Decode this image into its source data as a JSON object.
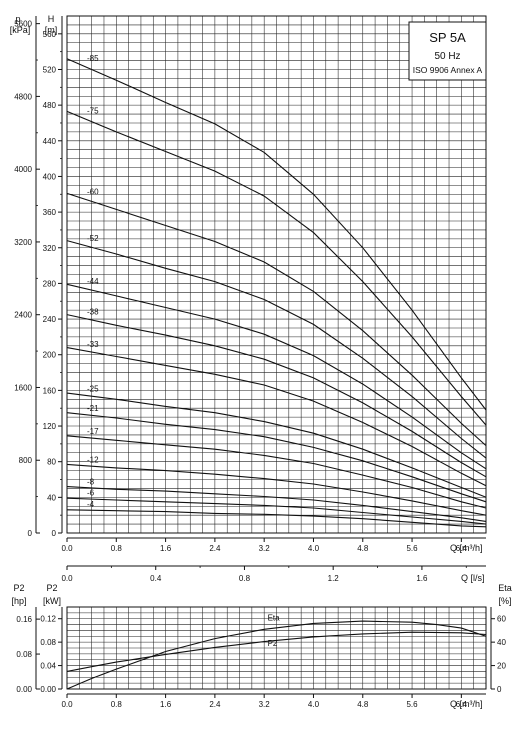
{
  "chart_data": [
    {
      "type": "line",
      "title": "SP 5A",
      "subtitle": "50 Hz",
      "note": "ISO 9906 Annex A",
      "xlabel": "Q [m³/h]",
      "ylabel": "H [m]",
      "ylabel_secondary": "p [kPa]",
      "grid": true,
      "xlim": [
        0,
        6.8
      ],
      "ylim": [
        0,
        580
      ],
      "x_ticks": [
        "0.0",
        "0.8",
        "1.6",
        "2.4",
        "3.2",
        "4.0",
        "4.8",
        "5.6",
        "6.4"
      ],
      "y_ticks": [
        "0",
        "40",
        "80",
        "120",
        "160",
        "200",
        "240",
        "280",
        "320",
        "360",
        "400",
        "440",
        "480",
        "520",
        "560"
      ],
      "p_ticks": [
        "0",
        "800",
        "1600",
        "2400",
        "3200",
        "4000",
        "4800",
        "5600"
      ],
      "q2_label": "Q [l/s]",
      "q2_ticks": [
        "0.0",
        "0.4",
        "0.8",
        "1.2",
        "1.6"
      ],
      "series": [
        {
          "name": "-85",
          "x": [
            0,
            0.8,
            1.6,
            2.4,
            3.2,
            4.0,
            4.8,
            5.6,
            6.4,
            6.8
          ],
          "values": [
            532,
            508,
            483,
            459,
            427,
            380,
            320,
            250,
            174,
            138
          ]
        },
        {
          "name": "-75",
          "x": [
            0,
            0.8,
            1.6,
            2.4,
            3.2,
            4.0,
            4.8,
            5.6,
            6.4,
            6.8
          ],
          "values": [
            473,
            450,
            428,
            406,
            378,
            337,
            282,
            220,
            153,
            121
          ]
        },
        {
          "name": "-60",
          "x": [
            0,
            0.8,
            1.6,
            2.4,
            3.2,
            4.0,
            4.8,
            5.6,
            6.4,
            6.8
          ],
          "values": [
            381,
            363,
            345,
            327,
            304,
            271,
            227,
            177,
            123,
            98
          ]
        },
        {
          "name": "-52",
          "x": [
            0,
            0.8,
            1.6,
            2.4,
            3.2,
            4.0,
            4.8,
            5.6,
            6.4,
            6.8
          ],
          "values": [
            328,
            313,
            297,
            282,
            262,
            234,
            196,
            153,
            106,
            84
          ]
        },
        {
          "name": "-44",
          "x": [
            0,
            0.8,
            1.6,
            2.4,
            3.2,
            4.0,
            4.8,
            5.6,
            6.4,
            6.8
          ],
          "values": [
            279,
            266,
            253,
            240,
            223,
            199,
            167,
            130,
            90,
            72
          ]
        },
        {
          "name": "-38",
          "x": [
            0,
            0.8,
            1.6,
            2.4,
            3.2,
            4.0,
            4.8,
            5.6,
            6.4,
            6.8
          ],
          "values": [
            245,
            233,
            222,
            210,
            195,
            174,
            146,
            114,
            79,
            63
          ]
        },
        {
          "name": "-33",
          "x": [
            0,
            0.8,
            1.6,
            2.4,
            3.2,
            4.0,
            4.8,
            5.6,
            6.4,
            6.8
          ],
          "values": [
            208,
            198,
            188,
            178,
            166,
            148,
            124,
            97,
            67,
            53
          ]
        },
        {
          "name": "-25",
          "x": [
            0,
            0.8,
            1.6,
            2.4,
            3.2,
            4.0,
            4.8,
            5.6,
            6.4,
            6.8
          ],
          "values": [
            157,
            150,
            142,
            135,
            125,
            112,
            94,
            73,
            51,
            40
          ]
        },
        {
          "name": "-21",
          "x": [
            0,
            0.8,
            1.6,
            2.4,
            3.2,
            4.0,
            4.8,
            5.6,
            6.4,
            6.8
          ],
          "values": [
            135,
            129,
            122,
            116,
            108,
            96,
            81,
            63,
            44,
            35
          ]
        },
        {
          "name": "-17",
          "x": [
            0,
            0.8,
            1.6,
            2.4,
            3.2,
            4.0,
            4.8,
            5.6,
            6.4,
            6.8
          ],
          "values": [
            109,
            104,
            99,
            94,
            87,
            78,
            65,
            51,
            35,
            28
          ]
        },
        {
          "name": "-12",
          "x": [
            0,
            0.8,
            1.6,
            2.4,
            3.2,
            4.0,
            4.8,
            5.6,
            6.4,
            6.8
          ],
          "values": [
            77,
            73,
            70,
            66,
            61,
            55,
            46,
            36,
            25,
            20
          ]
        },
        {
          "name": "-8",
          "x": [
            0,
            0.8,
            1.6,
            2.4,
            3.2,
            4.0,
            4.8,
            5.6,
            6.4,
            6.8
          ],
          "values": [
            52,
            49,
            47,
            44,
            41,
            37,
            31,
            24,
            17,
            13
          ]
        },
        {
          "name": "-6",
          "x": [
            0,
            0.8,
            1.6,
            2.4,
            3.2,
            4.0,
            4.8,
            5.6,
            6.4,
            6.8
          ],
          "values": [
            39,
            37,
            35,
            33,
            31,
            28,
            23,
            18,
            13,
            10
          ]
        },
        {
          "name": "-4",
          "x": [
            0,
            0.8,
            1.6,
            2.4,
            3.2,
            4.0,
            4.8,
            5.6,
            6.4,
            6.8
          ],
          "values": [
            26,
            25,
            24,
            22,
            21,
            19,
            16,
            12,
            8,
            7
          ]
        }
      ]
    },
    {
      "type": "line",
      "xlabel": "Q [m³/h]",
      "ylabel": "P2 [kW]",
      "ylabel_secondary": "P2 [hp]",
      "ylabel_right": "Eta [%]",
      "grid": true,
      "xlim": [
        0,
        6.8
      ],
      "ylim": [
        0,
        0.14
      ],
      "x_ticks": [
        "0.0",
        "0.8",
        "1.6",
        "2.4",
        "3.2",
        "4.0",
        "4.8",
        "5.6",
        "6.4"
      ],
      "kw_ticks": [
        "0.00",
        "0.04",
        "0.08",
        "0.12"
      ],
      "hp_ticks": [
        "0.00",
        "0.08",
        "0.16"
      ],
      "eta_ticks": [
        "0",
        "20",
        "40",
        "60"
      ],
      "series": [
        {
          "name": "Eta",
          "axis": "eta",
          "x": [
            0,
            0.4,
            0.8,
            1.6,
            2.4,
            3.2,
            4.0,
            4.8,
            5.6,
            6.0,
            6.4,
            6.8
          ],
          "values": [
            0,
            9,
            17,
            32,
            43,
            51,
            56,
            58,
            57,
            55,
            52,
            45
          ]
        },
        {
          "name": "P2",
          "axis": "kw",
          "x": [
            0,
            0.4,
            0.8,
            1.6,
            2.4,
            3.2,
            4.0,
            4.8,
            5.6,
            6.4,
            6.8
          ],
          "values": [
            0.03,
            0.038,
            0.046,
            0.059,
            0.071,
            0.081,
            0.089,
            0.094,
            0.097,
            0.096,
            0.093
          ]
        }
      ]
    }
  ],
  "axis_units": {
    "p": "p",
    "kpa": "[kPa]",
    "h": "H",
    "m": "[m]",
    "p2_left": "P2",
    "hp": "[hp]",
    "p2_right": "P2",
    "kw": "[kW]",
    "eta": "Eta",
    "pct": "[%]"
  }
}
